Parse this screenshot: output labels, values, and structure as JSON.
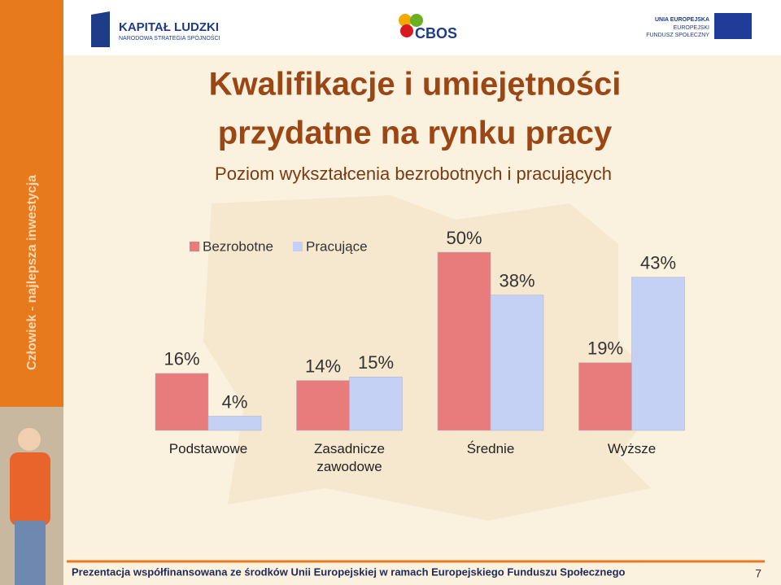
{
  "header": {
    "logo_left": "KAPITAŁ LUDZKI",
    "logo_left_sub": "NARODOWA STRATEGIA SPÓJNOŚCI",
    "logo_center": "CBOS",
    "logo_right": [
      "UNIA EUROPEJSKA",
      "EUROPEJSKI",
      "FUNDUSZ SPOŁECZNY"
    ]
  },
  "sidebar": "Człowiek - najlepsza inwestycja",
  "title": [
    "Kwalifikacje i umiejętności",
    "przydatne na rynku pracy"
  ],
  "footer": {
    "text": "Prezentacja współfinansowana ze środków Unii Europejskiej w ramach Europejskiego Funduszu Społecznego",
    "page": "7"
  },
  "chart_data": {
    "type": "bar",
    "subtitle": "Poziom wykształcenia bezrobotnych i pracujących",
    "categories": [
      "Podstawowe",
      "Zasadnicze zawodowe",
      "Średnie",
      "Wyższe"
    ],
    "series": [
      {
        "name": "Bezrobotne",
        "color": "#e87b7b",
        "values": [
          16,
          14,
          50,
          19
        ],
        "value_labels": [
          "16%",
          "14%",
          "50%",
          "19%"
        ]
      },
      {
        "name": "Pracujące",
        "color": "#c5d0f5",
        "values": [
          4,
          15,
          38,
          43
        ],
        "value_labels": [
          "4%",
          "15%",
          "38%",
          "43%"
        ]
      }
    ],
    "ylim": [
      0,
      50
    ],
    "grid": false,
    "legend": "top-left"
  }
}
